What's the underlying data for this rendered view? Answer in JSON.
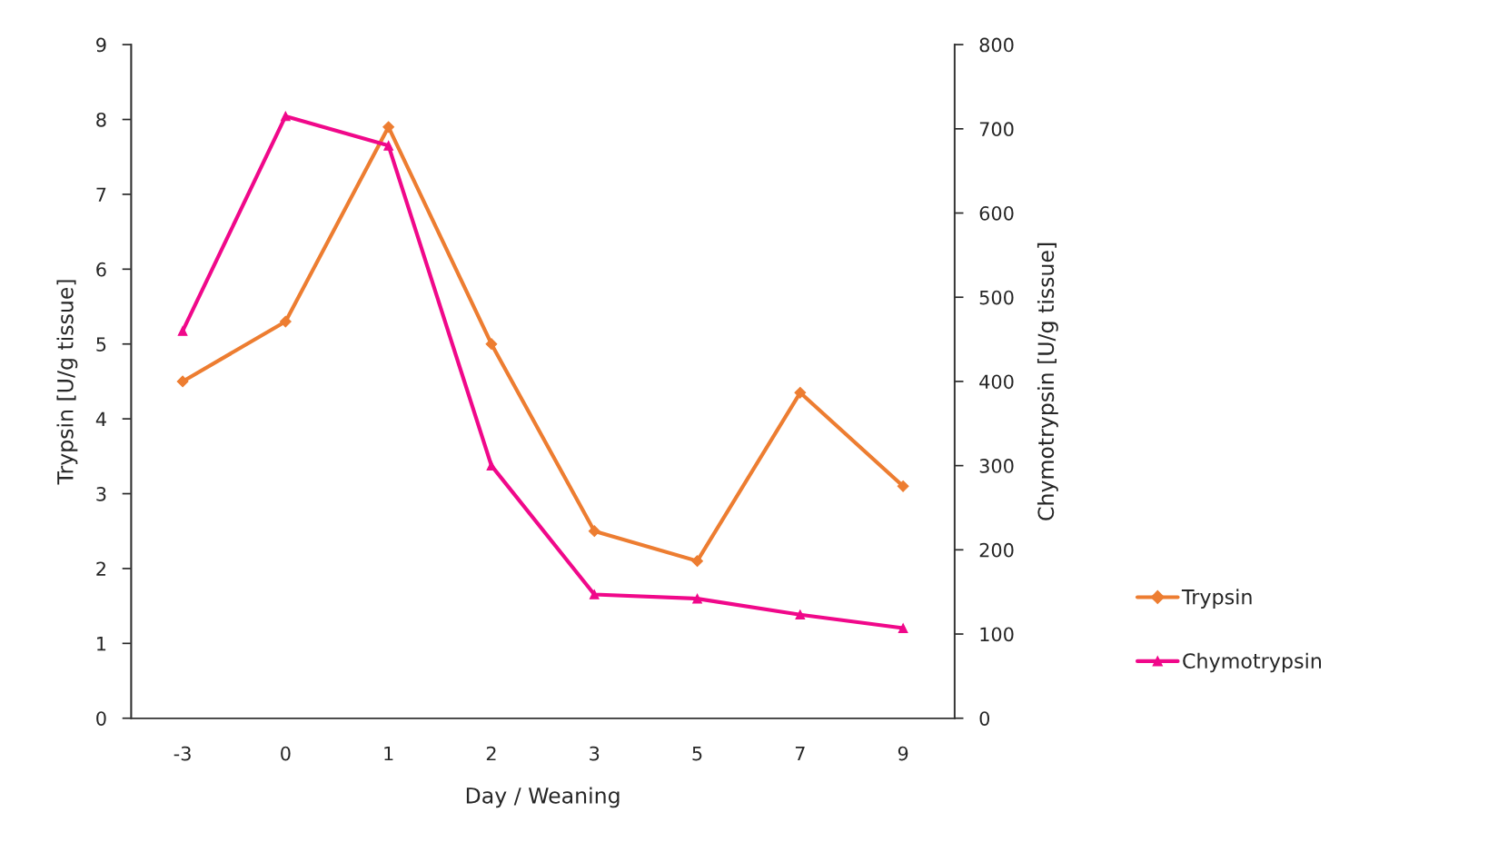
{
  "chart_data": {
    "type": "line",
    "xlabel": "Day / Weaning",
    "ylabel": "Trypsin [U/g tissue]",
    "y2label": "Chymotrypsin [U/g tissue]",
    "categories": [
      "-3",
      "0",
      "1",
      "2",
      "3",
      "5",
      "7",
      "9"
    ],
    "series": [
      {
        "name": "Trypsin",
        "color": "#ed7d31",
        "marker": "diamond",
        "values": [
          4.5,
          5.3,
          7.9,
          5.0,
          2.5,
          2.1,
          4.35,
          3.1
        ]
      },
      {
        "name": "Chymotrypsin",
        "color": "#f0088a",
        "marker": "triangle",
        "axis": "y2",
        "values": [
          460,
          715,
          680,
          300,
          147,
          142,
          123,
          107
        ]
      }
    ],
    "ylim": [
      0,
      9
    ],
    "yticks": [
      0,
      1,
      2,
      3,
      4,
      5,
      6,
      7,
      8,
      9
    ],
    "y2lim": [
      0,
      800
    ],
    "y2ticks": [
      0,
      100,
      200,
      300,
      400,
      500,
      600,
      700,
      800
    ],
    "grid": false,
    "legend": "right",
    "line_style": "solid"
  }
}
